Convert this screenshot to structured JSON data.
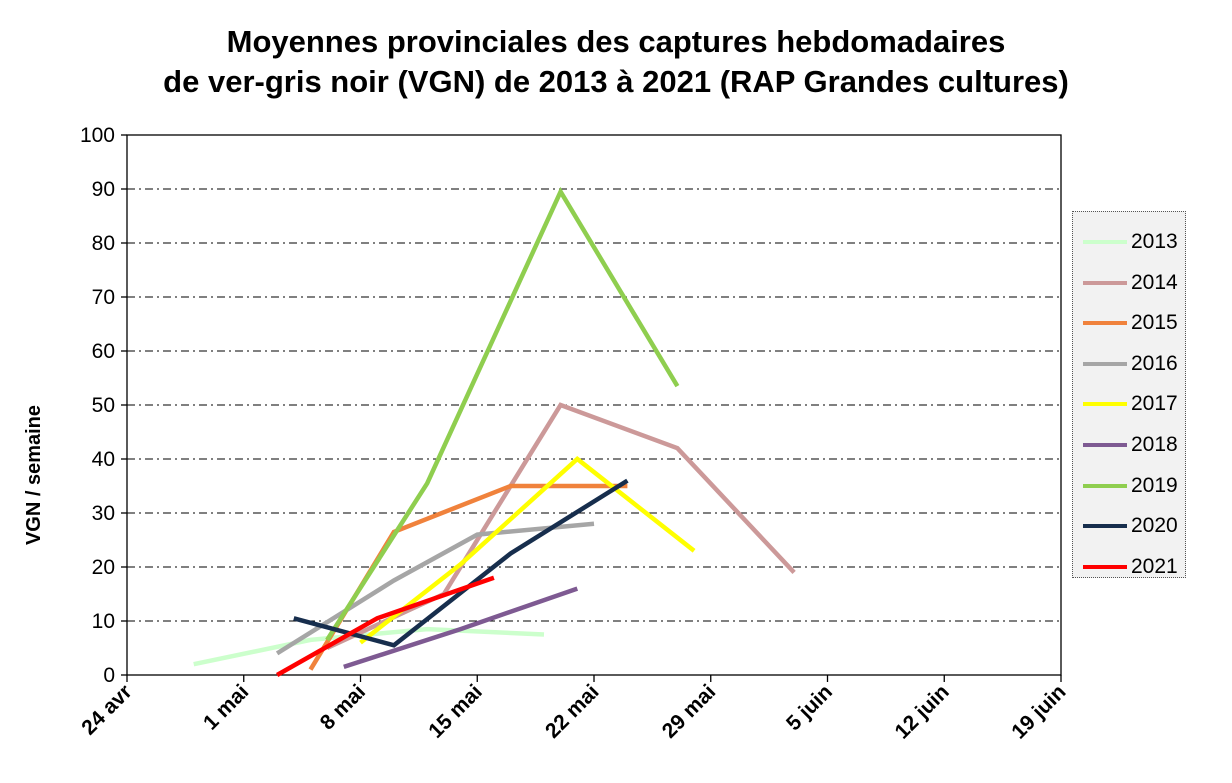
{
  "chart_data": {
    "type": "line",
    "title": [
      "Moyennes provinciales des captures hebdomadaires",
      "de ver-gris noir (VGN) de 2013 à 2021 (RAP Grandes cultures)"
    ],
    "ylabel": "VGN / semaine",
    "xlabel": "",
    "ylim": [
      0,
      100
    ],
    "yticks": [
      0,
      10,
      20,
      30,
      40,
      50,
      60,
      70,
      80,
      90,
      100
    ],
    "xlim": [
      "24 avr",
      "19 juin"
    ],
    "xticks": [
      "24 avr",
      "1 mai",
      "8 mai",
      "15 mai",
      "22 mai",
      "29 mai",
      "5 juin",
      "12 juin",
      "19 juin"
    ],
    "grid": "horizontal dash-dot",
    "legend_position": "right",
    "series": [
      {
        "name": "2013",
        "color": "#ccffcc",
        "points": [
          [
            "28 avr",
            2
          ],
          [
            "5 mai",
            6.5
          ],
          [
            "12 mai",
            8.5
          ],
          [
            "19 mai",
            7.5
          ]
        ]
      },
      {
        "name": "2014",
        "color": "#cc9999",
        "points": [
          [
            "6 mai",
            5
          ],
          [
            "13 mai",
            15
          ],
          [
            "20 mai",
            50
          ],
          [
            "27 mai",
            42
          ],
          [
            "3 juin",
            19
          ]
        ]
      },
      {
        "name": "2015",
        "color": "#f0823c",
        "points": [
          [
            "5 mai",
            1
          ],
          [
            "10 mai",
            26.5
          ],
          [
            "17 mai",
            35
          ],
          [
            "24 mai",
            35
          ]
        ]
      },
      {
        "name": "2016",
        "color": "#a6a6a6",
        "points": [
          [
            "3 mai",
            4
          ],
          [
            "10 mai",
            17.5
          ],
          [
            "15 mai",
            26
          ],
          [
            "22 mai",
            28
          ]
        ]
      },
      {
        "name": "2017",
        "color": "#ffff00",
        "points": [
          [
            "8 mai",
            6
          ],
          [
            "14 mai",
            20.5
          ],
          [
            "21 mai",
            40
          ],
          [
            "28 mai",
            23
          ]
        ]
      },
      {
        "name": "2018",
        "color": "#7e5a92",
        "points": [
          [
            "7 mai",
            1.5
          ],
          [
            "14 mai",
            8.5
          ],
          [
            "21 mai",
            16
          ]
        ]
      },
      {
        "name": "2019",
        "color": "#8fce4f",
        "points": [
          [
            "6 mai",
            6.5
          ],
          [
            "12 mai",
            35.5
          ],
          [
            "20 mai",
            89.5
          ],
          [
            "27 mai",
            53.5
          ]
        ]
      },
      {
        "name": "2020",
        "color": "#172e4d",
        "points": [
          [
            "4 mai",
            10.5
          ],
          [
            "10 mai",
            5.5
          ],
          [
            "17 mai",
            22.5
          ],
          [
            "24 mai",
            36
          ]
        ]
      },
      {
        "name": "2021",
        "color": "#ff0000",
        "points": [
          [
            "3 mai",
            0
          ],
          [
            "9 mai",
            10.5
          ],
          [
            "16 mai",
            18
          ]
        ]
      }
    ]
  }
}
